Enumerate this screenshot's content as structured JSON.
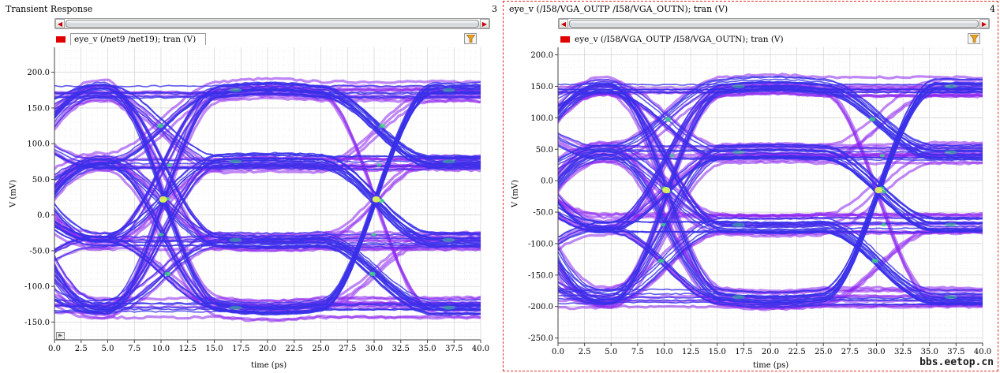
{
  "panels": [
    {
      "title": "Transient Response",
      "number": "3",
      "legend": "eye_v (/net9 /net19); tran (V)",
      "ylabel": "V (mV)",
      "xlabel": "time (ps)"
    },
    {
      "title": "eye_v (/I58/VGA_OUTP /I58/VGA_OUTN); tran (V)",
      "number": "4",
      "legend": "eye_v (/I58/VGA_OUTP /I58/VGA_OUTN); tran (V)",
      "ylabel": "V (mV)",
      "xlabel": "time (ps)"
    }
  ],
  "watermark": "bbs.eetop.cn",
  "icons": {
    "filter": "filter-funnel-icon",
    "scroll_left": "arrow-left-icon",
    "scroll_right": "arrow-right-icon"
  },
  "colors": {
    "trace_main": "#3a2fe8",
    "trace_edge": "#8a22ee",
    "hot_spot": "#39e07a",
    "legend_swatch": "#e00000"
  },
  "chart_data": [
    {
      "type": "line",
      "subtype": "eye-diagram",
      "title": "Transient Response",
      "legend": [
        "eye_v (/net9 /net19); tran (V)"
      ],
      "xlabel": "time (ps)",
      "ylabel": "V (mV)",
      "xlim": [
        0,
        40
      ],
      "ylim": [
        -175,
        235
      ],
      "xticks": [
        0.0,
        2.5,
        5.0,
        7.5,
        10.0,
        12.5,
        15.0,
        17.5,
        20.0,
        22.5,
        25.0,
        27.5,
        30.0,
        32.5,
        35.0,
        37.5,
        40.0
      ],
      "yticks": [
        -150.0,
        -100.0,
        -50.0,
        0.0,
        50.0,
        100.0,
        150.0,
        200.0
      ],
      "grid": true,
      "levels_mV": [
        175,
        75,
        -35,
        -130
      ],
      "level_spread_mV": 22,
      "crossing_times_ps": [
        10.2,
        30.2
      ],
      "crossing_center_mV": 22
    },
    {
      "type": "line",
      "subtype": "eye-diagram",
      "title": "eye_v (/I58/VGA_OUTP /I58/VGA_OUTN); tran (V)",
      "legend": [
        "eye_v (/I58/VGA_OUTP /I58/VGA_OUTN); tran (V)"
      ],
      "xlabel": "time (ps)",
      "ylabel": "V (mV)",
      "xlim": [
        0,
        40
      ],
      "ylim": [
        -258,
        212
      ],
      "xticks": [
        0.0,
        2.5,
        5.0,
        7.5,
        10.0,
        12.5,
        15.0,
        17.5,
        20.0,
        22.5,
        25.0,
        27.5,
        30.0,
        32.5,
        35.0,
        37.5,
        40.0
      ],
      "yticks": [
        -250.0,
        -200.0,
        -150.0,
        -100.0,
        -50.0,
        0.0,
        50.0,
        100.0,
        150.0,
        200.0
      ],
      "grid": true,
      "levels_mV": [
        150,
        45,
        -70,
        -185
      ],
      "level_spread_mV": 25,
      "crossing_times_ps": [
        10.2,
        30.2
      ],
      "crossing_center_mV": -15
    }
  ]
}
